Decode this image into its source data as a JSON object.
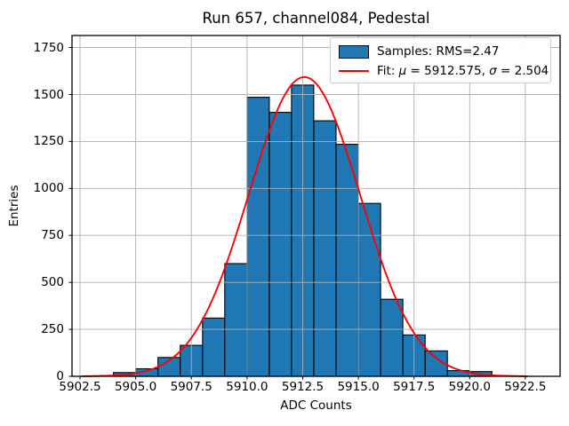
{
  "title": "Run 657, channel084, Pedestal",
  "xlabel": "ADC Counts",
  "ylabel": "Entries",
  "legend": {
    "samples_label": "Samples: RMS=2.47",
    "fit_parts": {
      "prefix": "Fit: ",
      "mu_sym": "μ",
      "mid": " = 5912.575, ",
      "sigma_sym": "σ",
      "suffix": " = 2.504"
    }
  },
  "chart_data": {
    "type": "bar",
    "subtype": "histogram",
    "title": "Run 657, channel084, Pedestal",
    "xlabel": "ADC Counts",
    "ylabel": "Entries",
    "bin_start": 5904,
    "bin_width": 1,
    "counts": [
      20,
      40,
      100,
      165,
      310,
      600,
      1485,
      1405,
      1550,
      1360,
      1235,
      920,
      410,
      220,
      135,
      30,
      25
    ],
    "fit": {
      "mu": 5912.575,
      "sigma": 2.504,
      "amplitude": 1593,
      "rms": 2.47,
      "range": [
        5902.575,
        5922.575
      ]
    },
    "xticks": [
      5902.5,
      5905.0,
      5907.5,
      5910.0,
      5912.5,
      5915.0,
      5917.5,
      5920.0,
      5922.5
    ],
    "xtick_labels": [
      "5902.5",
      "5905.0",
      "5907.5",
      "5910.0",
      "5912.5",
      "5915.0",
      "5917.5",
      "5920.0",
      "5922.5"
    ],
    "yticks": [
      0,
      250,
      500,
      750,
      1000,
      1250,
      1500,
      1750
    ],
    "ytick_labels": [
      "0",
      "250",
      "500",
      "750",
      "1000",
      "1250",
      "1500",
      "1750"
    ],
    "xlim": [
      5902.14,
      5924.06
    ],
    "ylim": [
      0,
      1814
    ],
    "grid": true,
    "grid_above_bars": true,
    "legend_position": "upper right",
    "colors": {
      "bar_fill": "#1f77b4",
      "bar_edge": "#000000",
      "fit_line": "#ff0000",
      "grid": "#b0b0b0",
      "spine": "#000000"
    }
  }
}
